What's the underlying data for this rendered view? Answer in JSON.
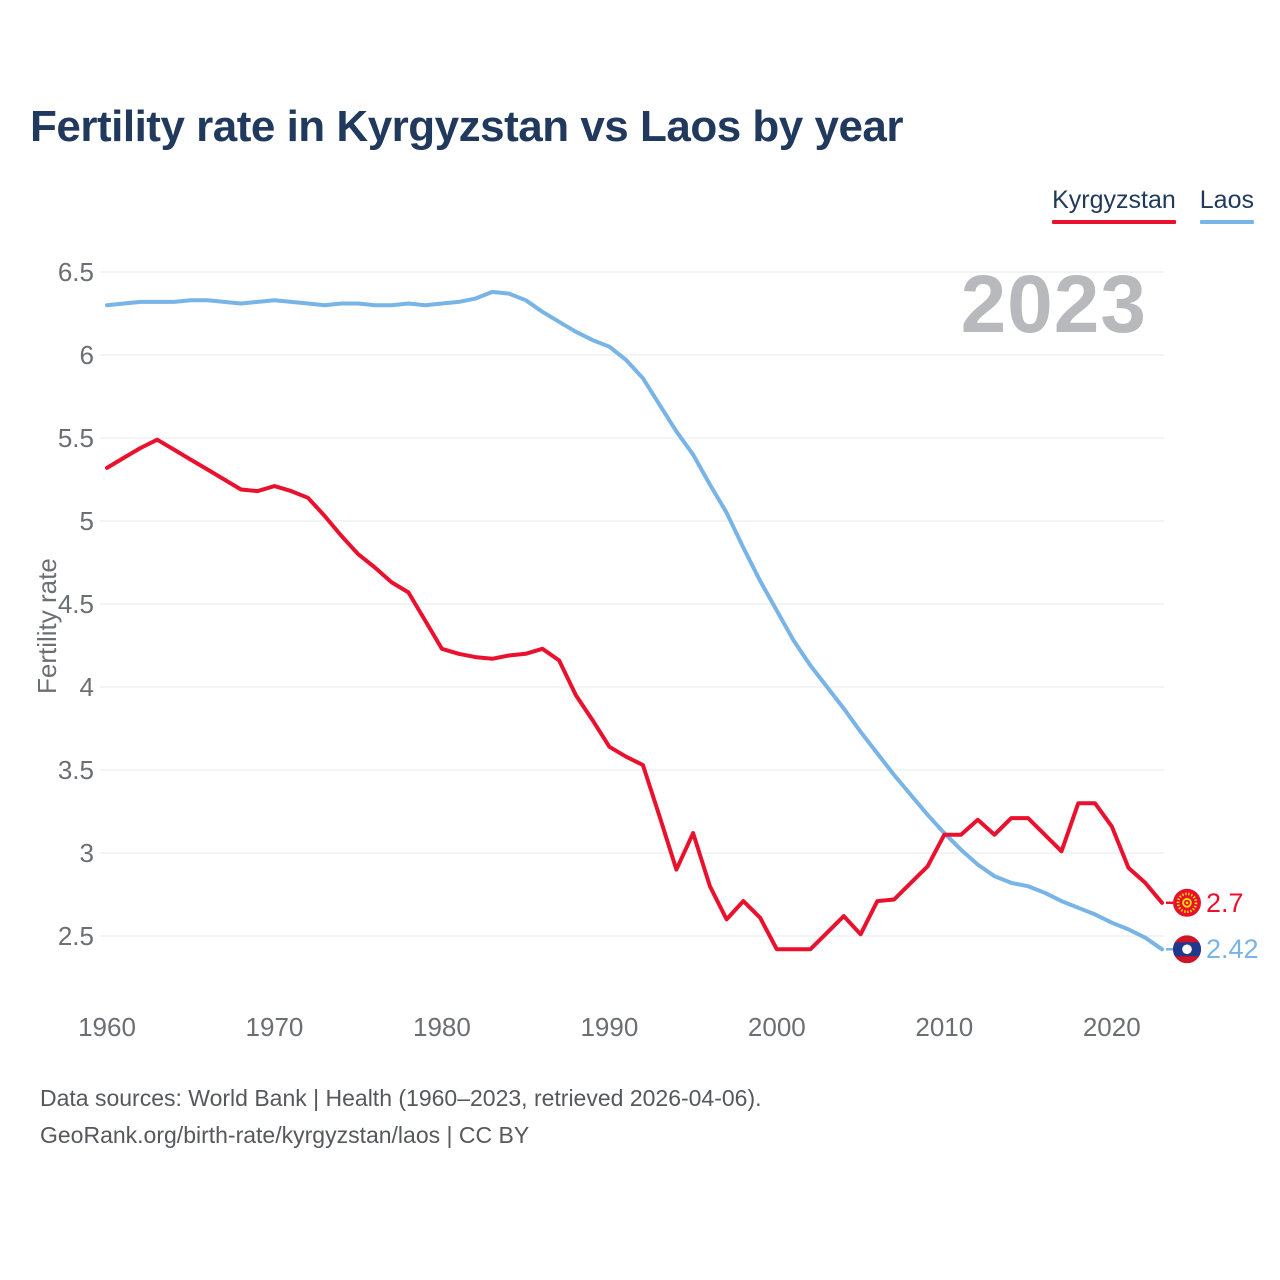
{
  "title": "Fertility rate in Kyrgyzstan vs Laos by year",
  "watermark": "2023",
  "legend": [
    {
      "label": "Kyrgyzstan",
      "color": "#e9112d"
    },
    {
      "label": "Laos",
      "color": "#78b4e6"
    }
  ],
  "footer": {
    "line1": "Data sources: World Bank | Health (1960–2023, retrieved 2026-04-06).",
    "line2": "GeoRank.org/birth-rate/kyrgyzstan/laos | CC BY"
  },
  "chart_data": {
    "type": "line",
    "title": "Fertility rate in Kyrgyzstan vs Laos by year",
    "xlabel": "",
    "ylabel": "Fertility rate",
    "x_range": [
      1960,
      2023
    ],
    "ylim": [
      2.2,
      6.6
    ],
    "yticks": [
      "6.5",
      "6",
      "5.5",
      "5",
      "4.5",
      "4",
      "3.5",
      "3",
      "2.5"
    ],
    "ytick_values": [
      6.5,
      6,
      5.5,
      5,
      4.5,
      4,
      3.5,
      3,
      2.5
    ],
    "xticks": [
      1960,
      1970,
      1980,
      1990,
      2000,
      2010,
      2020
    ],
    "grid": "horizontal",
    "legend_position": "top-right",
    "x": [
      1960,
      1961,
      1962,
      1963,
      1964,
      1965,
      1966,
      1967,
      1968,
      1969,
      1970,
      1971,
      1972,
      1973,
      1974,
      1975,
      1976,
      1977,
      1978,
      1979,
      1980,
      1981,
      1982,
      1983,
      1984,
      1985,
      1986,
      1987,
      1988,
      1989,
      1990,
      1991,
      1992,
      1993,
      1994,
      1995,
      1996,
      1997,
      1998,
      1999,
      2000,
      2001,
      2002,
      2003,
      2004,
      2005,
      2006,
      2007,
      2008,
      2009,
      2010,
      2011,
      2012,
      2013,
      2014,
      2015,
      2016,
      2017,
      2018,
      2019,
      2020,
      2021,
      2022,
      2023
    ],
    "series": [
      {
        "name": "Kyrgyzstan",
        "color": "#e9112d",
        "end_label": "2.7",
        "values": [
          5.32,
          5.38,
          5.44,
          5.49,
          5.43,
          5.37,
          5.31,
          5.25,
          5.19,
          5.18,
          5.21,
          5.18,
          5.14,
          5.03,
          4.91,
          4.8,
          4.72,
          4.63,
          4.57,
          4.4,
          4.23,
          4.2,
          4.18,
          4.17,
          4.19,
          4.2,
          4.23,
          4.16,
          3.95,
          3.8,
          3.64,
          3.58,
          3.53,
          3.22,
          2.9,
          3.12,
          2.8,
          2.6,
          2.71,
          2.61,
          2.42,
          2.42,
          2.42,
          2.52,
          2.62,
          2.51,
          2.71,
          2.72,
          2.82,
          2.92,
          3.11,
          3.11,
          3.2,
          3.11,
          3.21,
          3.21,
          3.11,
          3.01,
          3.3,
          3.3,
          3.16,
          2.91,
          2.82,
          2.7
        ]
      },
      {
        "name": "Laos",
        "color": "#78b4e6",
        "end_label": "2.42",
        "values": [
          6.3,
          6.31,
          6.32,
          6.32,
          6.32,
          6.33,
          6.33,
          6.32,
          6.31,
          6.32,
          6.33,
          6.32,
          6.31,
          6.3,
          6.31,
          6.31,
          6.3,
          6.3,
          6.31,
          6.3,
          6.31,
          6.32,
          6.34,
          6.38,
          6.37,
          6.33,
          6.26,
          6.2,
          6.14,
          6.09,
          6.05,
          5.97,
          5.86,
          5.7,
          5.54,
          5.4,
          5.22,
          5.05,
          4.84,
          4.64,
          4.46,
          4.28,
          4.13,
          4.0,
          3.87,
          3.73,
          3.6,
          3.47,
          3.35,
          3.23,
          3.12,
          3.02,
          2.93,
          2.86,
          2.82,
          2.8,
          2.76,
          2.71,
          2.67,
          2.63,
          2.58,
          2.54,
          2.49,
          2.42
        ]
      }
    ],
    "flag_colors": {
      "kyrgyzstan_red": "#e8112d",
      "kyrgyzstan_yellow": "#ffe400",
      "laos_red": "#d01426",
      "laos_blue": "#21398c",
      "laos_white": "#ffffff"
    }
  }
}
